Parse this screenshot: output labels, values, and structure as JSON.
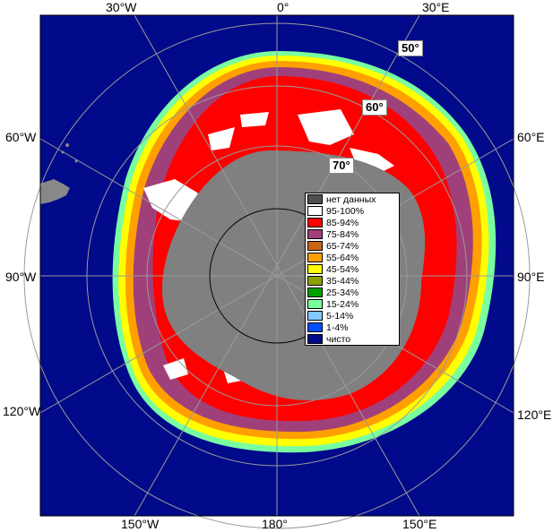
{
  "map": {
    "longitude_labels": {
      "top": [
        "30°W",
        "0°",
        "30°E"
      ],
      "left": [
        "60°W",
        "90°W",
        "120°W"
      ],
      "right": [
        "60°E",
        "90°E",
        "120°E"
      ],
      "bottom": [
        "150°W",
        "180°",
        "150°E"
      ]
    },
    "latitude_labels": [
      "50°",
      "60°",
      "70°"
    ],
    "colors": {
      "ocean": "#000a8a",
      "land": "#888888",
      "ice_shelf": "#9a9a9a",
      "grid": "#9a9a9a"
    }
  },
  "legend": {
    "items": [
      {
        "label": "нет данных",
        "color": "#505050"
      },
      {
        "label": "95-100%",
        "color": "#ffffff"
      },
      {
        "label": "85-94%",
        "color": "#ff0000"
      },
      {
        "label": "75-84%",
        "color": "#a0407a"
      },
      {
        "label": "65-74%",
        "color": "#c86414"
      },
      {
        "label": "55-64%",
        "color": "#ffa000"
      },
      {
        "label": "45-54%",
        "color": "#ffff00"
      },
      {
        "label": "35-44%",
        "color": "#8ca000"
      },
      {
        "label": "25-34%",
        "color": "#00a000"
      },
      {
        "label": "15-24%",
        "color": "#78ffa0"
      },
      {
        "label": "5-14%",
        "color": "#82c8ff"
      },
      {
        "label": "1-4%",
        "color": "#0050ff"
      },
      {
        "label": "чисто",
        "color": "#000a8a"
      }
    ]
  }
}
